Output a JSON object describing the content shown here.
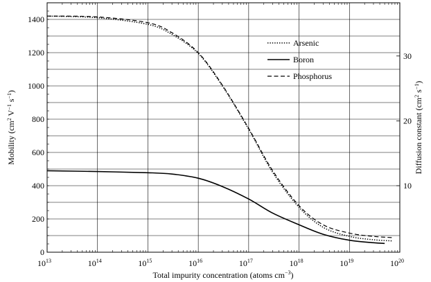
{
  "chart_data": {
    "type": "line",
    "x_scale": "log",
    "x_range": [
      10000000000000.0,
      1e+20
    ],
    "ylim": [
      0,
      1500
    ],
    "y2_scale": "linear",
    "grid": true,
    "legend_placement": "top-right",
    "colors": {
      "line": "#000000",
      "grid": "#000000",
      "background": "#ffffff"
    },
    "xlabel": {
      "text": "Total impurity concentration (atoms cm",
      "sup": "−3",
      "tail": ")"
    },
    "ylabel": {
      "parts": [
        {
          "text": "Mobility (cm",
          "sup": false
        },
        {
          "text": "2",
          "sup": true
        },
        {
          "text": " V",
          "sup": false
        },
        {
          "text": "−1",
          "sup": true
        },
        {
          "text": " s",
          "sup": false
        },
        {
          "text": "−1",
          "sup": true
        },
        {
          "text": ")",
          "sup": false
        }
      ]
    },
    "y2label": {
      "parts": [
        {
          "text": "Diffusion constant (cm",
          "sup": false
        },
        {
          "text": "2",
          "sup": true
        },
        {
          "text": " s",
          "sup": false
        },
        {
          "text": "−1",
          "sup": true
        },
        {
          "text": ")",
          "sup": false
        }
      ]
    },
    "x_ticks": [
      {
        "base": "10",
        "exp": "13",
        "value": 10000000000000.0
      },
      {
        "base": "10",
        "exp": "14",
        "value": 100000000000000.0
      },
      {
        "base": "10",
        "exp": "15",
        "value": 1000000000000000.0
      },
      {
        "base": "10",
        "exp": "16",
        "value": 1e+16
      },
      {
        "base": "10",
        "exp": "17",
        "value": 1e+17
      },
      {
        "base": "10",
        "exp": "18",
        "value": 1e+18
      },
      {
        "base": "10",
        "exp": "19",
        "value": 1e+19
      },
      {
        "base": "10",
        "exp": "20",
        "value": 1e+20
      }
    ],
    "y_ticks": [
      0,
      200,
      400,
      600,
      800,
      1000,
      1200,
      1400
    ],
    "y_tick_labels": [
      "0",
      "200",
      "400",
      "600",
      "800",
      "1000",
      "1200",
      "1400"
    ],
    "y2_ticks": [
      {
        "label": "10",
        "mobility": 400
      },
      {
        "label": "20",
        "mobility": 790
      },
      {
        "label": "30",
        "mobility": 1180
      }
    ],
    "series": [
      {
        "name": "Arsenic",
        "style": "dotted",
        "x": [
          10000000000000.0,
          100000000000000.0,
          1000000000000000.0,
          3000000000000000.0,
          1e+16,
          3e+16,
          1e+17,
          3e+17,
          1e+18,
          3e+18,
          1e+19,
          3e+19,
          7e+19
        ],
        "y": [
          1420,
          1410,
          1370,
          1310,
          1195,
          1000,
          740,
          480,
          270,
          150,
          95,
          75,
          68
        ]
      },
      {
        "name": "Boron",
        "style": "solid",
        "x": [
          10000000000000.0,
          100000000000000.0,
          1000000000000000.0,
          3000000000000000.0,
          1e+16,
          3e+16,
          1e+17,
          3e+17,
          1e+18,
          3e+18,
          1e+19,
          3e+19,
          5e+19
        ],
        "y": [
          490,
          485,
          478,
          470,
          445,
          395,
          320,
          235,
          165,
          108,
          72,
          57,
          53
        ]
      },
      {
        "name": "Phosphorus",
        "style": "dashed",
        "x": [
          10000000000000.0,
          100000000000000.0,
          1000000000000000.0,
          3000000000000000.0,
          1e+16,
          3e+16,
          1e+17,
          3e+17,
          1e+18,
          3e+18,
          1e+19,
          3e+19,
          7e+19
        ],
        "y": [
          1420,
          1415,
          1380,
          1320,
          1200,
          1005,
          745,
          490,
          280,
          165,
          115,
          95,
          88
        ]
      }
    ]
  }
}
